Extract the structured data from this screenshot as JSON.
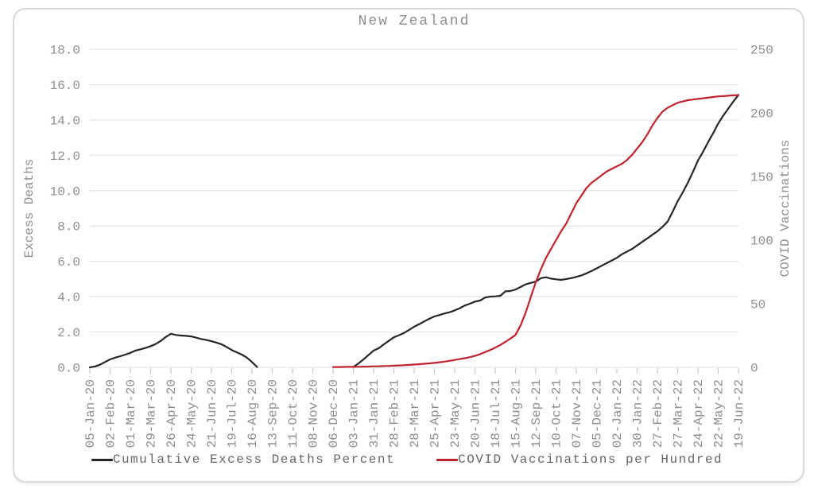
{
  "chart_data": {
    "type": "line",
    "title": "New Zealand",
    "x_axis": {
      "tick_labels": [
        "05-Jan-20",
        "02-Feb-20",
        "01-Mar-20",
        "29-Mar-20",
        "26-Apr-20",
        "24-May-20",
        "21-Jun-20",
        "19-Jul-20",
        "16-Aug-20",
        "13-Sep-20",
        "11-Oct-20",
        "08-Nov-20",
        "06-Dec-20",
        "03-Jan-21",
        "31-Jan-21",
        "28-Feb-21",
        "28-Mar-21",
        "25-Apr-21",
        "23-May-21",
        "20-Jun-21",
        "18-Jul-21",
        "15-Aug-21",
        "12-Sep-21",
        "10-Oct-21",
        "07-Nov-21",
        "05-Dec-21",
        "02-Jan-22",
        "30-Jan-22",
        "27-Feb-22",
        "27-Mar-22",
        "24-Apr-22",
        "22-May-22",
        "19-Jun-22"
      ],
      "weeks_per_tick": 4,
      "total_weeks": 128
    },
    "left_axis": {
      "label": "Excess Deaths",
      "min": 0,
      "max": 18,
      "step": 2,
      "decimals": 1
    },
    "right_axis": {
      "label": "COVID Vaccinations",
      "min": 0,
      "max": 250,
      "step": 50,
      "decimals": 0
    },
    "grid": true,
    "legend_position": "bottom",
    "colors": {
      "grid": "#e3e3e3",
      "tick_mark": "#c9c9c9",
      "axis_text": "#8f8f8f"
    },
    "series": [
      {
        "name": "Cumulative Excess Deaths Percent",
        "color": "#262626",
        "axis": "left",
        "segments": [
          [
            [
              0,
              0
            ],
            [
              1,
              0.05
            ],
            [
              2,
              0.15
            ],
            [
              3,
              0.3
            ],
            [
              4,
              0.45
            ],
            [
              5,
              0.55
            ],
            [
              6,
              0.63
            ],
            [
              7,
              0.72
            ],
            [
              8,
              0.82
            ],
            [
              9,
              0.95
            ],
            [
              10,
              1.02
            ],
            [
              11,
              1.1
            ],
            [
              12,
              1.2
            ],
            [
              13,
              1.32
            ],
            [
              14,
              1.5
            ],
            [
              15,
              1.72
            ],
            [
              16,
              1.9
            ],
            [
              17,
              1.83
            ],
            [
              18,
              1.8
            ],
            [
              19,
              1.78
            ],
            [
              20,
              1.75
            ],
            [
              21,
              1.68
            ],
            [
              22,
              1.6
            ],
            [
              23,
              1.55
            ],
            [
              24,
              1.48
            ],
            [
              25,
              1.4
            ],
            [
              26,
              1.3
            ],
            [
              27,
              1.15
            ],
            [
              28,
              0.98
            ],
            [
              29,
              0.85
            ],
            [
              30,
              0.72
            ],
            [
              31,
              0.55
            ],
            [
              32,
              0.3
            ],
            [
              33,
              0.02
            ]
          ],
          [
            [
              52,
              0.02
            ],
            [
              53,
              0.22
            ],
            [
              54,
              0.45
            ],
            [
              55,
              0.7
            ],
            [
              56,
              0.95
            ],
            [
              57,
              1.08
            ],
            [
              58,
              1.3
            ],
            [
              59,
              1.5
            ],
            [
              60,
              1.7
            ],
            [
              61,
              1.82
            ],
            [
              62,
              1.95
            ],
            [
              63,
              2.12
            ],
            [
              64,
              2.3
            ],
            [
              65,
              2.45
            ],
            [
              66,
              2.6
            ],
            [
              67,
              2.75
            ],
            [
              68,
              2.88
            ],
            [
              69,
              2.96
            ],
            [
              70,
              3.05
            ],
            [
              71,
              3.12
            ],
            [
              72,
              3.22
            ],
            [
              73,
              3.35
            ],
            [
              74,
              3.5
            ],
            [
              75,
              3.6
            ],
            [
              76,
              3.72
            ],
            [
              77,
              3.78
            ],
            [
              78,
              3.95
            ],
            [
              79,
              4.0
            ],
            [
              80,
              4.02
            ],
            [
              81,
              4.05
            ],
            [
              82,
              4.3
            ],
            [
              83,
              4.32
            ],
            [
              84,
              4.4
            ],
            [
              85,
              4.55
            ],
            [
              86,
              4.7
            ],
            [
              87,
              4.78
            ],
            [
              88,
              4.85
            ],
            [
              89,
              5.05
            ],
            [
              90,
              5.1
            ],
            [
              91,
              5.02
            ],
            [
              92,
              4.98
            ],
            [
              93,
              4.95
            ],
            [
              94,
              5.0
            ],
            [
              95,
              5.05
            ],
            [
              96,
              5.12
            ],
            [
              97,
              5.2
            ],
            [
              98,
              5.32
            ],
            [
              99,
              5.45
            ],
            [
              100,
              5.6
            ],
            [
              101,
              5.75
            ],
            [
              102,
              5.9
            ],
            [
              103,
              6.05
            ],
            [
              104,
              6.2
            ],
            [
              105,
              6.4
            ],
            [
              106,
              6.55
            ],
            [
              107,
              6.7
            ],
            [
              108,
              6.9
            ],
            [
              109,
              7.1
            ],
            [
              110,
              7.3
            ],
            [
              111,
              7.5
            ],
            [
              112,
              7.7
            ],
            [
              113,
              7.95
            ],
            [
              114,
              8.25
            ],
            [
              115,
              8.8
            ],
            [
              116,
              9.4
            ],
            [
              117,
              9.9
            ],
            [
              118,
              10.45
            ],
            [
              119,
              11.05
            ],
            [
              120,
              11.7
            ],
            [
              121,
              12.2
            ],
            [
              122,
              12.75
            ],
            [
              123,
              13.25
            ],
            [
              124,
              13.8
            ],
            [
              125,
              14.25
            ],
            [
              126,
              14.65
            ],
            [
              127,
              15.05
            ],
            [
              128,
              15.42
            ]
          ]
        ]
      },
      {
        "name": "COVID Vaccinations per Hundred",
        "color": "#bf232e",
        "axis": "right",
        "segments": [
          [
            [
              48,
              0.2
            ],
            [
              49,
              0.25
            ],
            [
              50,
              0.3
            ],
            [
              51,
              0.35
            ],
            [
              52,
              0.4
            ],
            [
              53,
              0.45
            ],
            [
              54,
              0.55
            ],
            [
              55,
              0.65
            ],
            [
              56,
              0.8
            ],
            [
              57,
              0.9
            ],
            [
              58,
              1.05
            ],
            [
              59,
              1.15
            ],
            [
              60,
              1.3
            ],
            [
              61,
              1.5
            ],
            [
              62,
              1.7
            ],
            [
              63,
              1.95
            ],
            [
              64,
              2.2
            ],
            [
              65,
              2.5
            ],
            [
              66,
              2.8
            ],
            [
              67,
              3.1
            ],
            [
              68,
              3.5
            ],
            [
              69,
              4.0
            ],
            [
              70,
              4.5
            ],
            [
              71,
              5.1
            ],
            [
              72,
              5.8
            ],
            [
              73,
              6.5
            ],
            [
              74,
              7.2
            ],
            [
              75,
              8.0
            ],
            [
              76,
              9.0
            ],
            [
              77,
              10.4
            ],
            [
              78,
              12.0
            ],
            [
              79,
              13.6
            ],
            [
              80,
              15.5
            ],
            [
              81,
              17.6
            ],
            [
              82,
              20.0
            ],
            [
              83,
              22.6
            ],
            [
              84,
              25.5
            ],
            [
              85,
              33
            ],
            [
              86,
              43
            ],
            [
              87,
              55
            ],
            [
              88,
              67
            ],
            [
              89,
              77
            ],
            [
              90,
              86
            ],
            [
              91,
              93
            ],
            [
              92,
              100
            ],
            [
              93,
              107
            ],
            [
              94,
              113
            ],
            [
              95,
              121
            ],
            [
              96,
              129
            ],
            [
              97,
              135
            ],
            [
              98,
              141
            ],
            [
              99,
              145
            ],
            [
              100,
              148
            ],
            [
              101,
              151
            ],
            [
              102,
              154
            ],
            [
              103,
              156
            ],
            [
              104,
              158
            ],
            [
              105,
              160
            ],
            [
              106,
              163
            ],
            [
              107,
              167
            ],
            [
              108,
              172
            ],
            [
              109,
              177
            ],
            [
              110,
              183
            ],
            [
              111,
              190
            ],
            [
              112,
              196
            ],
            [
              113,
              201
            ],
            [
              114,
              204
            ],
            [
              115,
              206
            ],
            [
              116,
              208
            ],
            [
              117,
              209
            ],
            [
              118,
              210
            ],
            [
              119,
              210.5
            ],
            [
              120,
              211
            ],
            [
              121,
              211.5
            ],
            [
              122,
              212
            ],
            [
              123,
              212.5
            ],
            [
              124,
              213
            ],
            [
              125,
              213.2
            ],
            [
              126,
              213.5
            ],
            [
              127,
              213.8
            ],
            [
              128,
              214
            ]
          ]
        ]
      }
    ]
  }
}
